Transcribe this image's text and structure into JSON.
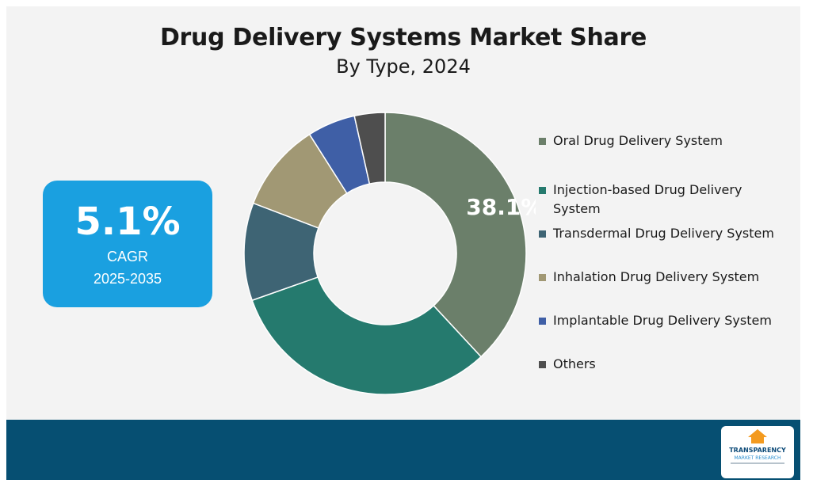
{
  "title": "Drug Delivery Systems Market Share",
  "subtitle": "By Type, 2024",
  "cagr": {
    "value": "5.1%",
    "label": "CAGR",
    "range": "2025-2035"
  },
  "chart_data": {
    "type": "pie",
    "variant": "donut",
    "title": "Drug Delivery Systems Market Share",
    "subtitle": "By Type, 2024",
    "legend_position": "right",
    "categories": [
      "Oral Drug Delivery System",
      "Injection-based Drug Delivery System",
      "Transdermal Drug Delivery System",
      "Inhalation Drug Delivery System",
      "Implantable Drug Delivery System",
      "Others"
    ],
    "values": [
      38.1,
      31.5,
      11.2,
      10.2,
      5.5,
      3.5
    ],
    "colors": [
      "#6b7f6a",
      "#257a6e",
      "#3e6474",
      "#a19874",
      "#3f5fa6",
      "#4e4e4e"
    ],
    "data_labels": [
      "38.1%",
      "",
      "",
      "",
      "",
      ""
    ]
  },
  "logo": {
    "name": "TRANSPARENCY",
    "subtitle": "MARKET RESEARCH"
  },
  "colors": {
    "background": "#f3f3f3",
    "footer": "#064f72",
    "cagr_box": "#1aa0e0"
  }
}
